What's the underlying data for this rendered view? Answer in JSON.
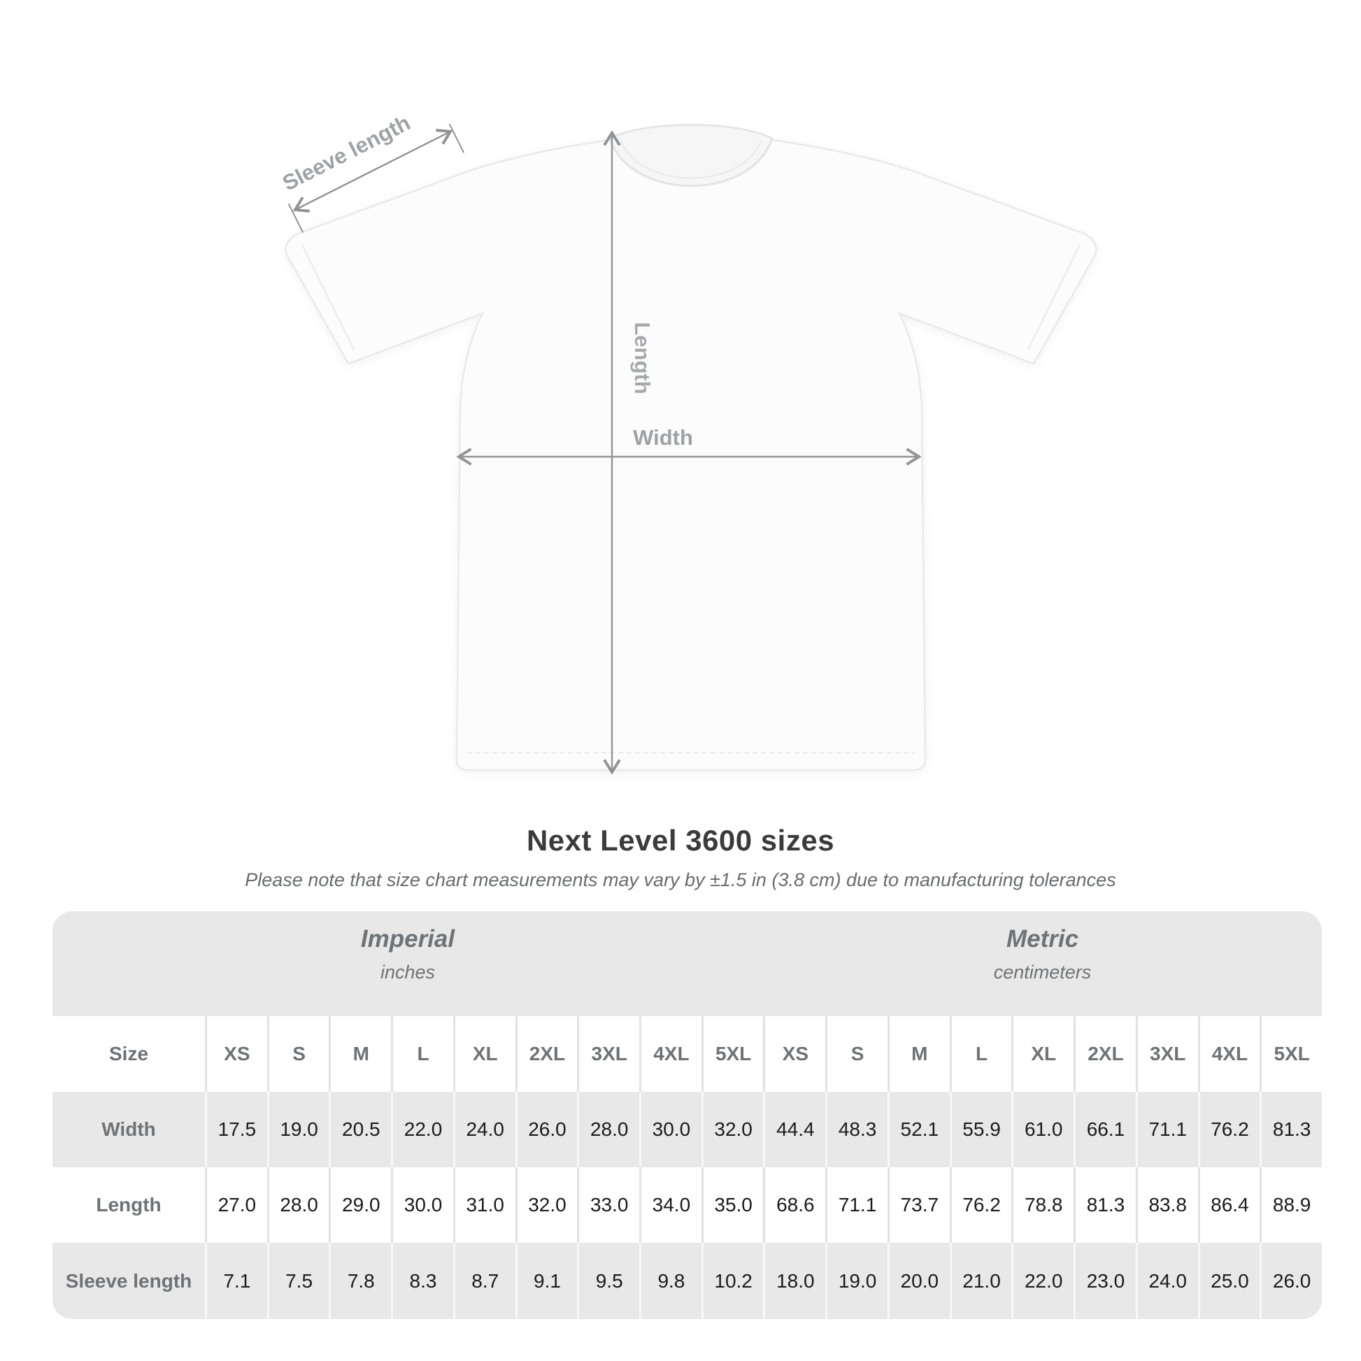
{
  "shirt_diagram": {
    "labels": {
      "sleeve_length": "Sleeve length",
      "length": "Length",
      "width": "Width"
    },
    "colors": {
      "arrow_gray": "#909496",
      "label_gray": "#9da2a5",
      "shirt_fill": "#fcfcfc",
      "shirt_outline": "#e9e9e9"
    }
  },
  "title": "Next Level 3600 sizes",
  "subtitle": "Please note that size chart measurements may vary by ±1.5 in (3.8 cm) due to manufacturing tolerances",
  "size_table": {
    "unit_groups": [
      {
        "name": "Imperial",
        "unit": "inches"
      },
      {
        "name": "Metric",
        "unit": "centimeters"
      }
    ],
    "row_header": "Size",
    "sizes": [
      "XS",
      "S",
      "M",
      "L",
      "XL",
      "2XL",
      "3XL",
      "4XL",
      "5XL"
    ],
    "rows": [
      {
        "label": "Width",
        "imperial": [
          "17.5",
          "19.0",
          "20.5",
          "22.0",
          "24.0",
          "26.0",
          "28.0",
          "30.0",
          "32.0"
        ],
        "metric": [
          "44.4",
          "48.3",
          "52.1",
          "55.9",
          "61.0",
          "66.1",
          "71.1",
          "76.2",
          "81.3"
        ]
      },
      {
        "label": "Length",
        "imperial": [
          "27.0",
          "28.0",
          "29.0",
          "30.0",
          "31.0",
          "32.0",
          "33.0",
          "34.0",
          "35.0"
        ],
        "metric": [
          "68.6",
          "71.1",
          "73.7",
          "76.2",
          "78.8",
          "81.3",
          "83.8",
          "86.4",
          "88.9"
        ]
      },
      {
        "label": "Sleeve length",
        "imperial": [
          "7.1",
          "7.5",
          "7.8",
          "8.3",
          "8.7",
          "9.1",
          "9.5",
          "9.8",
          "10.2"
        ],
        "metric": [
          "18.0",
          "19.0",
          "20.0",
          "21.0",
          "22.0",
          "23.0",
          "24.0",
          "25.0",
          "26.0"
        ]
      }
    ],
    "colors": {
      "band_gray": "#e8e8e8",
      "header_text": "#6e7377",
      "value_text": "#1b1b1b"
    }
  },
  "chart_data": {
    "type": "table",
    "title": "Next Level 3600 sizes",
    "note": "Please note that size chart measurements may vary by ±1.5 in (3.8 cm) due to manufacturing tolerances",
    "column_groups": [
      "Imperial (inches)",
      "Metric (centimeters)"
    ],
    "columns": [
      "XS",
      "S",
      "M",
      "L",
      "XL",
      "2XL",
      "3XL",
      "4XL",
      "5XL"
    ],
    "rows": [
      {
        "label": "Width",
        "imperial_inches": [
          17.5,
          19.0,
          20.5,
          22.0,
          24.0,
          26.0,
          28.0,
          30.0,
          32.0
        ],
        "metric_cm": [
          44.4,
          48.3,
          52.1,
          55.9,
          61.0,
          66.1,
          71.1,
          76.2,
          81.3
        ]
      },
      {
        "label": "Length",
        "imperial_inches": [
          27.0,
          28.0,
          29.0,
          30.0,
          31.0,
          32.0,
          33.0,
          34.0,
          35.0
        ],
        "metric_cm": [
          68.6,
          71.1,
          73.7,
          76.2,
          78.8,
          81.3,
          83.8,
          86.4,
          88.9
        ]
      },
      {
        "label": "Sleeve length",
        "imperial_inches": [
          7.1,
          7.5,
          7.8,
          8.3,
          8.7,
          9.1,
          9.5,
          9.8,
          10.2
        ],
        "metric_cm": [
          18.0,
          19.0,
          20.0,
          21.0,
          22.0,
          23.0,
          24.0,
          25.0,
          26.0
        ]
      }
    ]
  }
}
